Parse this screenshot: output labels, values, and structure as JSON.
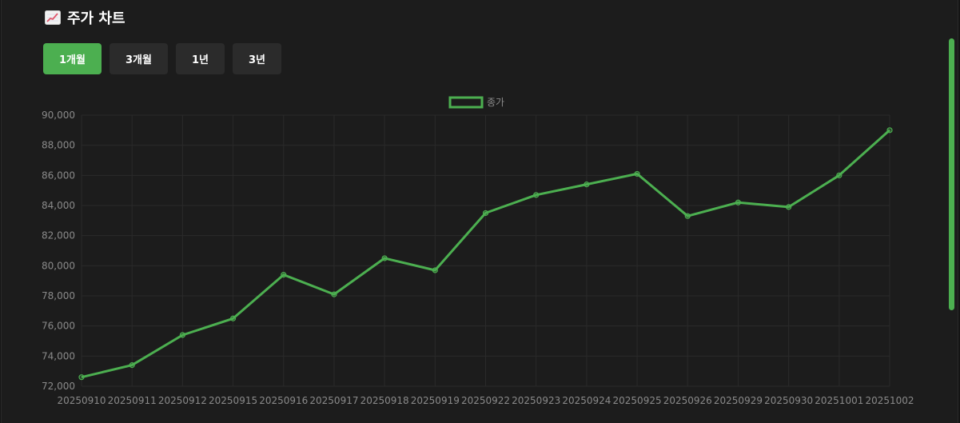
{
  "header": {
    "title": "주가 차트",
    "icon": "chart-increasing-icon"
  },
  "range_buttons": [
    {
      "label": "1개월",
      "active": true
    },
    {
      "label": "3개월",
      "active": false
    },
    {
      "label": "1년",
      "active": false
    },
    {
      "label": "3년",
      "active": false
    }
  ],
  "colors": {
    "accent": "#4caf50",
    "background": "#1c1c1c",
    "grid": "#2a2a2a",
    "tick_text": "#8a8a8a"
  },
  "chart_data": {
    "type": "line",
    "title": "",
    "xlabel": "",
    "ylabel": "",
    "legend_position": "top-center",
    "grid": true,
    "ylim": [
      72000,
      90000
    ],
    "yticks": [
      72000,
      74000,
      76000,
      78000,
      80000,
      82000,
      84000,
      86000,
      88000,
      90000
    ],
    "categories": [
      "20250910",
      "20250911",
      "20250912",
      "20250915",
      "20250916",
      "20250917",
      "20250918",
      "20250919",
      "20250922",
      "20250923",
      "20250924",
      "20250925",
      "20250926",
      "20250929",
      "20250930",
      "20251001",
      "20251002"
    ],
    "series": [
      {
        "name": "종가",
        "color": "#4caf50",
        "values": [
          72600,
          73400,
          75400,
          76500,
          79400,
          78100,
          80500,
          79700,
          83500,
          84700,
          85400,
          86100,
          83300,
          84200,
          83900,
          86000,
          89000
        ]
      }
    ]
  }
}
